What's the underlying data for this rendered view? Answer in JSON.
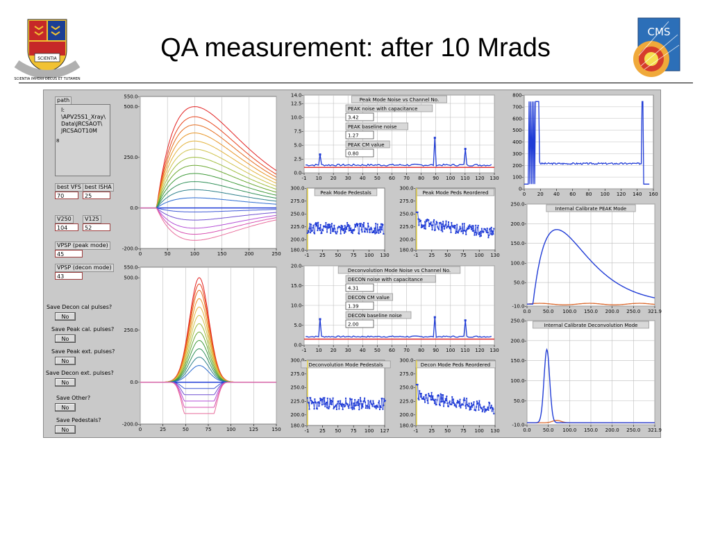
{
  "slide": {
    "title": "QA measurement: after 10 Mrads"
  },
  "logos": {
    "left_motto": "SCIENTIA IMPERII DECUS ET TUTAMEN",
    "left_book": "SCIENTIA",
    "right_text": "CMS"
  },
  "colors": {
    "panel": "#c9c9c9",
    "plot_bg": "#ffffff",
    "trace": "#1f3bd6",
    "ref_trace": "#d9662a",
    "field_border": "#9b3b3b"
  },
  "left_panel": {
    "path_label": "path",
    "path_lines": [
      "I:",
      "\\APV25S1_Xray\\",
      "Data\\JRCSAOT\\",
      "JRCSAOT10M"
    ],
    "path_marker": "8",
    "fields": [
      {
        "label": "best VFS",
        "value": "70"
      },
      {
        "label": "best ISHA",
        "value": "25"
      },
      {
        "label": "V250",
        "value": "104"
      },
      {
        "label": "V125",
        "value": "52"
      },
      {
        "label": "VPSP (peak mode)",
        "value": "45"
      },
      {
        "label": "VPSP (decon mode)",
        "value": "43"
      }
    ],
    "save_options": [
      {
        "label": "Save Decon cal pulses?",
        "button": "No"
      },
      {
        "label": "Save Peak cal. pulses?",
        "button": "No"
      },
      {
        "label": "Save Peak ext. pulses?",
        "button": "No"
      },
      {
        "label": "Save Decon ext. pulses?",
        "button": "No"
      },
      {
        "label": "Save Other?",
        "button": "No"
      },
      {
        "label": "Save Pedestals?",
        "button": "No"
      }
    ]
  },
  "chart_data": [
    {
      "id": "peak_pulse_family",
      "type": "line",
      "xlim": [
        0,
        250
      ],
      "ylim": [
        -200,
        550
      ],
      "xticks": [
        "0",
        "50",
        "100",
        "150",
        "200",
        "250"
      ],
      "yticks": [
        "550.0-",
        "500.0-",
        "250.0-",
        "0.0-",
        "-200.0-"
      ],
      "peak_x": 100,
      "amplitudes": [
        500,
        450,
        410,
        370,
        330,
        290,
        250,
        210,
        170,
        130,
        90,
        50,
        -20,
        -60,
        -100,
        -130,
        -160
      ],
      "colors": [
        "#e21f1f",
        "#e8411a",
        "#e56b1c",
        "#e89424",
        "#e3b23a",
        "#cfc24b",
        "#9fbd3d",
        "#6aa831",
        "#3f9a3a",
        "#2f8f56",
        "#2d7f8a",
        "#2a6ad0",
        "#3a55d6",
        "#6f4fd2",
        "#b54fd6",
        "#d74fb0",
        "#e86a9a"
      ]
    },
    {
      "id": "decon_pulse_family",
      "type": "line",
      "xlim": [
        0,
        150
      ],
      "ylim": [
        -200,
        550
      ],
      "xticks": [
        "0",
        "25",
        "50",
        "75",
        "100",
        "125",
        "150"
      ],
      "yticks": [
        "550.0-",
        "500.0-",
        "250.0-",
        "0.0-",
        "-200.0-"
      ],
      "peak_x": 65,
      "amplitudes": [
        500,
        470,
        440,
        400,
        360,
        320,
        280,
        240,
        200,
        160,
        120,
        80,
        -30,
        -60,
        -90,
        -120,
        -150
      ],
      "colors": [
        "#e21f1f",
        "#e8411a",
        "#e56b1c",
        "#e89424",
        "#e3b23a",
        "#cfc24b",
        "#9fbd3d",
        "#6aa831",
        "#3f9a3a",
        "#2f8f56",
        "#2d7f8a",
        "#2a6ad0",
        "#3a55d6",
        "#6f4fd2",
        "#b54fd6",
        "#d74fb0",
        "#e86a9a"
      ]
    },
    {
      "id": "peak_noise",
      "type": "line",
      "title": "Peak Mode Noise vs Channel No.",
      "xlim": [
        -1,
        130
      ],
      "ylim": [
        0,
        14
      ],
      "xticks": [
        "-1",
        "10",
        "20",
        "30",
        "40",
        "50",
        "60",
        "70",
        "80",
        "90",
        "100",
        "110",
        "120",
        "130"
      ],
      "yticks": [
        "14.0-",
        "12.5-",
        "10.0-",
        "7.5-",
        "5.0-",
        "2.5-",
        "0.0-"
      ],
      "baseline": 1.4,
      "spikes": [
        {
          "x": 10,
          "y": 3.3
        },
        {
          "x": 89,
          "y": 6.3
        },
        {
          "x": 110,
          "y": 4.3
        }
      ],
      "annotations": [
        {
          "label": "PEAK noise with capacitance",
          "value": "3.42"
        },
        {
          "label": "PEAK baseline noise",
          "value": "1.27"
        },
        {
          "label": "PEAK CM value",
          "value": "0.80"
        }
      ]
    },
    {
      "id": "peak_pedestals",
      "type": "line",
      "title": "Peak Mode Pedestals",
      "xlim": [
        -1,
        130
      ],
      "ylim": [
        180,
        300
      ],
      "xticks": [
        "-1",
        "25",
        "50",
        "75",
        "100",
        "130"
      ],
      "yticks": [
        "300.0-",
        "275.0-",
        "250.0-",
        "225.0-",
        "200.0-",
        "180.0-"
      ],
      "level": 222,
      "trend": 0
    },
    {
      "id": "peak_peds_reordered",
      "type": "line",
      "title": "Peak Mode Peds Reordered",
      "xlim": [
        -1,
        130
      ],
      "ylim": [
        180,
        300
      ],
      "xticks": [
        "-1",
        "25",
        "50",
        "75",
        "100",
        "130"
      ],
      "yticks": [
        "300.0-",
        "275.0-",
        "250.0-",
        "225.0-",
        "200.0-",
        "180.0-"
      ],
      "level": 233,
      "trend": -20
    },
    {
      "id": "raw_channels",
      "type": "line",
      "xlim": [
        0,
        160
      ],
      "ylim": [
        0,
        800
      ],
      "xticks": [
        "0",
        "20",
        "40",
        "60",
        "80",
        "100",
        "120",
        "140",
        "160"
      ],
      "yticks": [
        "800-",
        "700-",
        "600-",
        "500-",
        "400-",
        "300-",
        "200-",
        "100-",
        "0-"
      ],
      "level": 215,
      "high": 745
    },
    {
      "id": "int_cal_peak",
      "type": "line",
      "title": "Internal Calibrate PEAK Mode",
      "xlim": [
        0,
        321.9
      ],
      "ylim": [
        -10,
        250
      ],
      "xticks": [
        "0.0",
        "50.0",
        "100.0",
        "150.0",
        "200.0",
        "250.0",
        "321.9"
      ],
      "yticks": [
        "250.0-",
        "200.0-",
        "150.0-",
        "100.0-",
        "50.0-",
        "-10.0-"
      ],
      "peak_x": 75,
      "peak_y": 185
    },
    {
      "id": "int_cal_decon",
      "type": "line",
      "title": "Internal Calibrate Deconvolution Mode",
      "xlim": [
        0,
        321.9
      ],
      "ylim": [
        -10,
        250
      ],
      "xticks": [
        "0.0",
        "50.0",
        "100.0",
        "150.0",
        "200.0",
        "250.0",
        "321.9"
      ],
      "yticks": [
        "250.0-",
        "200.0-",
        "150.0-",
        "100.0-",
        "50.0-",
        "-10.0-"
      ],
      "peak_x": 50,
      "peak_y": 178
    },
    {
      "id": "decon_noise",
      "type": "line",
      "title": "Deconvolution Mode Noise vs Channel No.",
      "xlim": [
        -1,
        130
      ],
      "ylim": [
        0,
        20
      ],
      "xticks": [
        "-1",
        "10",
        "20",
        "30",
        "40",
        "50",
        "60",
        "70",
        "80",
        "90",
        "100",
        "110",
        "120",
        "130"
      ],
      "yticks": [
        "20.0-",
        "15.0-",
        "10.0-",
        "5.0-",
        "0.0-"
      ],
      "baseline": 2.1,
      "spikes": [
        {
          "x": 10,
          "y": 6.5
        },
        {
          "x": 89,
          "y": 7.0
        },
        {
          "x": 110,
          "y": 6.2
        }
      ],
      "annotations": [
        {
          "label": "DECON noise with capacitance",
          "value": "4.31"
        },
        {
          "label": "DECON CM value",
          "value": "1.39"
        },
        {
          "label": "DECON baseline noise",
          "value": "2.00"
        }
      ]
    },
    {
      "id": "decon_pedestals",
      "type": "line",
      "title": "Deconvolution Mode Pedestals",
      "xlim": [
        -1,
        127
      ],
      "ylim": [
        180,
        300
      ],
      "xticks": [
        "-1",
        "25",
        "50",
        "75",
        "100",
        "127"
      ],
      "yticks": [
        "300.0-",
        "275.0-",
        "250.0-",
        "225.0-",
        "200.0-",
        "180.0-"
      ],
      "level": 220,
      "trend": 0
    },
    {
      "id": "decon_peds_reordered",
      "type": "line",
      "title": "Decon Mode Peds Reordered",
      "xlim": [
        -1,
        130
      ],
      "ylim": [
        180,
        300
      ],
      "xticks": [
        "-1",
        "25",
        "50",
        "75",
        "100",
        "130"
      ],
      "yticks": [
        "300.0-",
        "275.0-",
        "250.0-",
        "225.0-",
        "200.0-",
        "180.0-"
      ],
      "level": 235,
      "trend": -25
    }
  ]
}
